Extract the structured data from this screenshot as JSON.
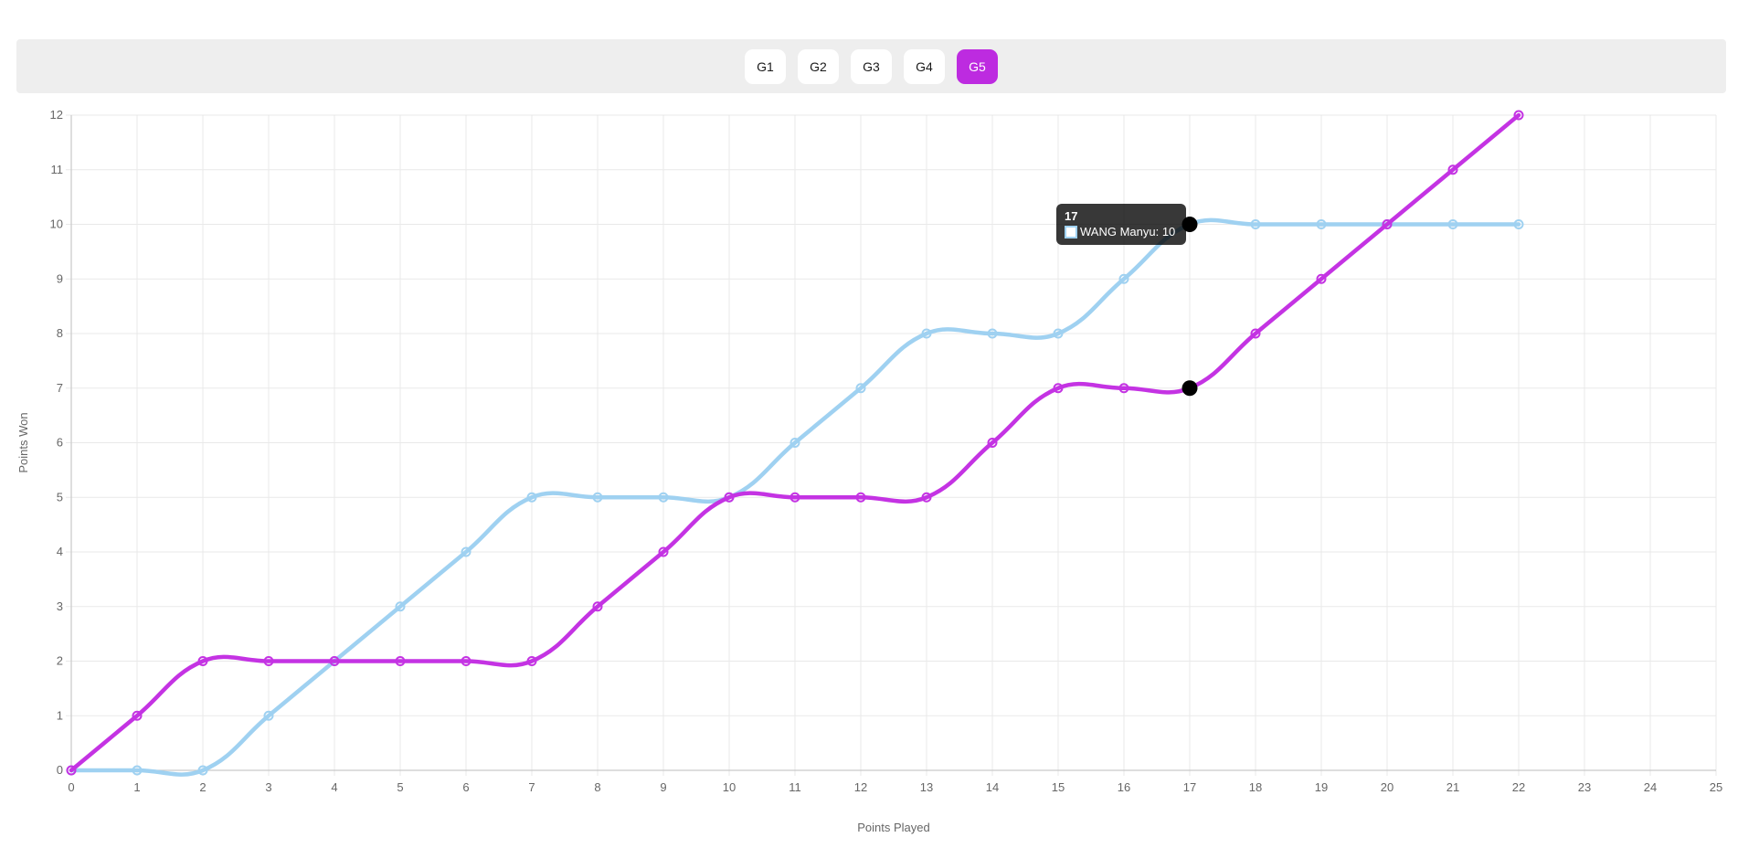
{
  "tab_bar": {
    "bar_bg": "#eeeeee",
    "active_bg": "#bd2be0",
    "active_text": "#ffffff",
    "items": [
      {
        "label": "G1",
        "active": false
      },
      {
        "label": "G2",
        "active": false
      },
      {
        "label": "G3",
        "active": false
      },
      {
        "label": "G4",
        "active": false
      },
      {
        "label": "G5",
        "active": true
      }
    ]
  },
  "chart_data": {
    "type": "line",
    "xlabel": "Points Played",
    "ylabel": "Points Won",
    "xlim": [
      0,
      25
    ],
    "ylim": [
      0,
      12
    ],
    "x_ticks": [
      0,
      1,
      2,
      3,
      4,
      5,
      6,
      7,
      8,
      9,
      10,
      11,
      12,
      13,
      14,
      15,
      16,
      17,
      18,
      19,
      20,
      21,
      22,
      23,
      24,
      25
    ],
    "y_ticks": [
      0,
      1,
      2,
      3,
      4,
      5,
      6,
      7,
      8,
      9,
      10,
      11,
      12
    ],
    "grid": true,
    "legend_position": "none",
    "curve_tension": 0.4,
    "x": [
      0,
      1,
      2,
      3,
      4,
      5,
      6,
      7,
      8,
      9,
      10,
      11,
      12,
      13,
      14,
      15,
      16,
      17,
      18,
      19,
      20,
      21,
      22
    ],
    "series": [
      {
        "name": "WANG Manyu",
        "color": "#9fd1f1",
        "values": [
          0,
          0,
          0,
          1,
          2,
          3,
          4,
          5,
          5,
          5,
          5,
          6,
          7,
          8,
          8,
          8,
          9,
          10,
          10,
          10,
          10,
          10,
          10
        ]
      },
      {
        "name": "",
        "color": "#c433e3",
        "values": [
          0,
          1,
          2,
          2,
          2,
          2,
          2,
          2,
          3,
          4,
          5,
          5,
          5,
          5,
          6,
          7,
          7,
          7,
          8,
          9,
          10,
          11,
          12
        ]
      }
    ],
    "grid_color": "#e9e9e9",
    "axis_border_color": "#c9c9c9",
    "tick_color": "#666666"
  },
  "tooltip": {
    "title": "17",
    "label": "WANG Manyu: 10",
    "box_border_color": "#9fd1f1",
    "box_fill_color": "#ffffff"
  },
  "highlight": {
    "x": 17,
    "series_values": [
      10,
      7
    ],
    "dot_color": "#000000"
  }
}
